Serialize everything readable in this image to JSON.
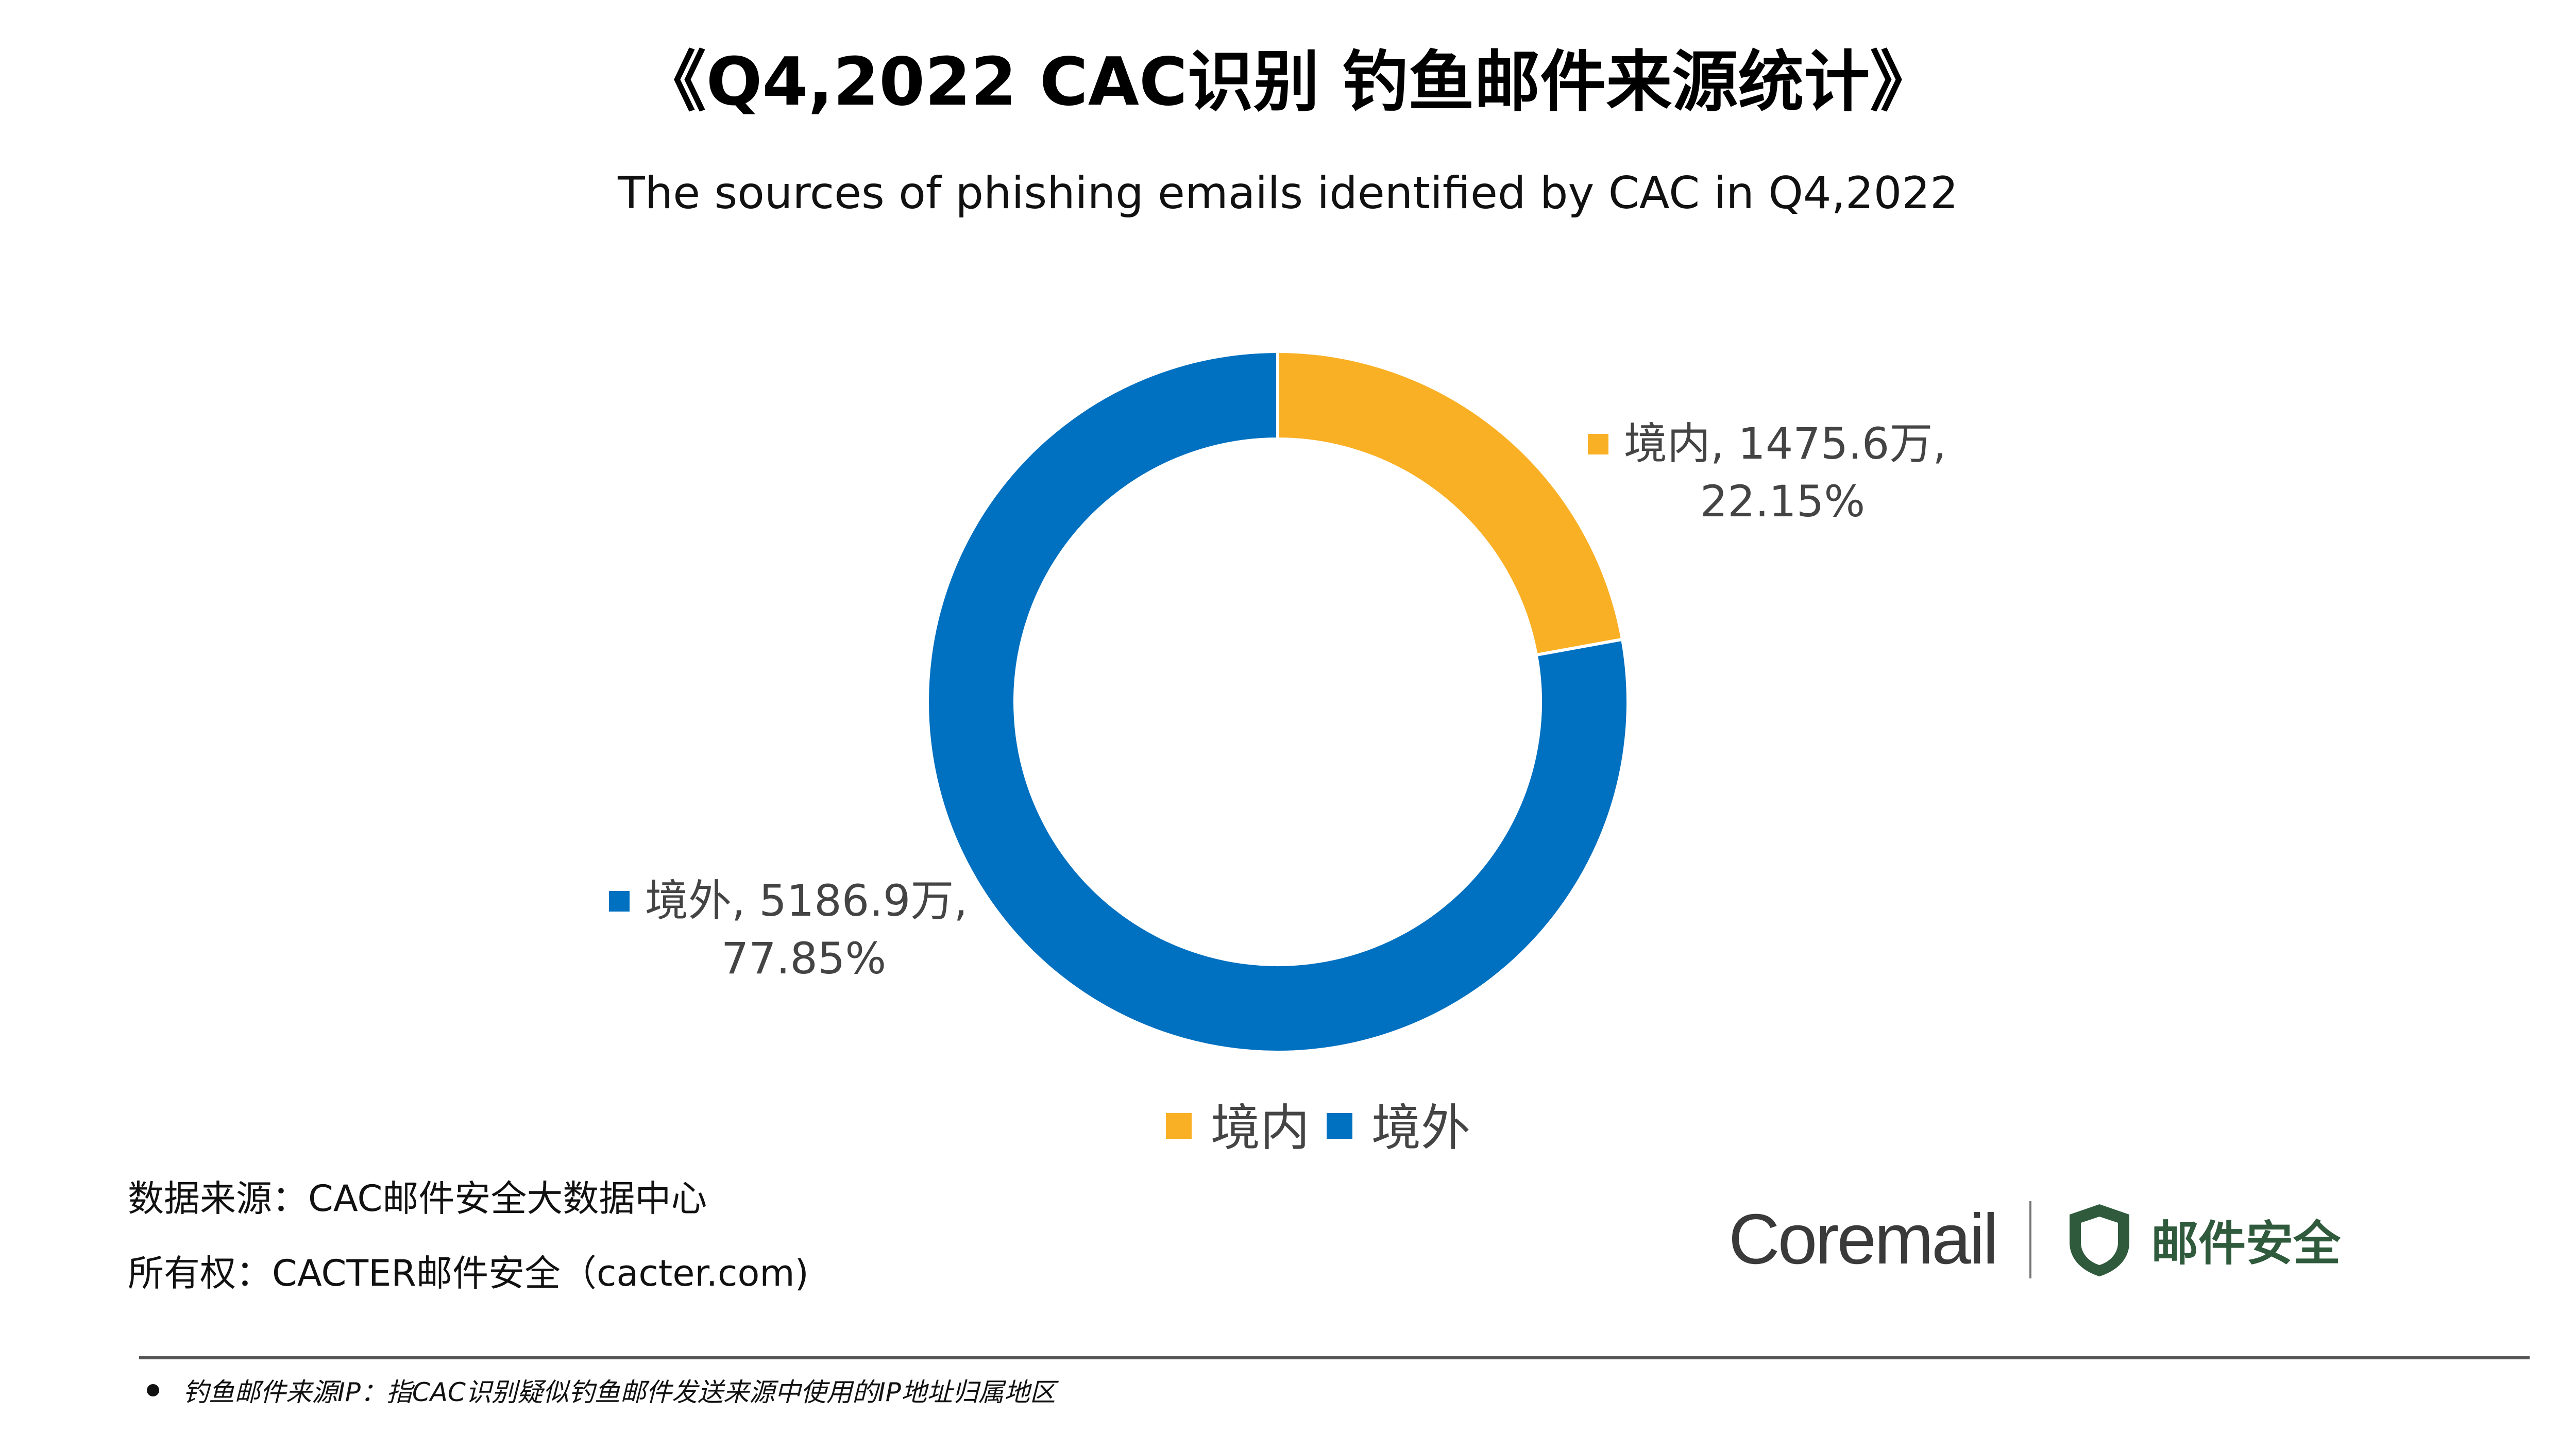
{
  "title": "《Q4,2022 CAC识别 钓鱼邮件来源统计》",
  "chart_data": {
    "type": "pie",
    "subtitle": "The sources of phishing emails  identified by CAC in Q4,2022",
    "categories": [
      "境内",
      "境外"
    ],
    "values": [
      1475.6,
      5186.9
    ],
    "value_labels": [
      "1475.6万",
      "5186.9万"
    ],
    "percentages": [
      "22.15%",
      "77.85%"
    ],
    "data_labels": [
      {
        "line1": "境内, 1475.6万,",
        "line2": "22.15%"
      },
      {
        "line1": "境外, 5186.9万,",
        "line2": "77.85%"
      }
    ],
    "colors": [
      "#F9B025",
      "#0070C0"
    ],
    "donut": true,
    "start_angle_deg": 0,
    "direction": "clockwise",
    "legend_position": "bottom"
  },
  "footer": {
    "source": "数据来源：CAC邮件安全大数据中心",
    "ownership": "所有权：CACTER邮件安全（cacter.com)"
  },
  "logo": {
    "brand": "Coremail",
    "product": "邮件安全",
    "shield_color": "#2F5A3C"
  },
  "footnote": "钓鱼邮件来源IP：指CAC识别疑似钓鱼邮件发送来源中使用的IP地址归属地区"
}
